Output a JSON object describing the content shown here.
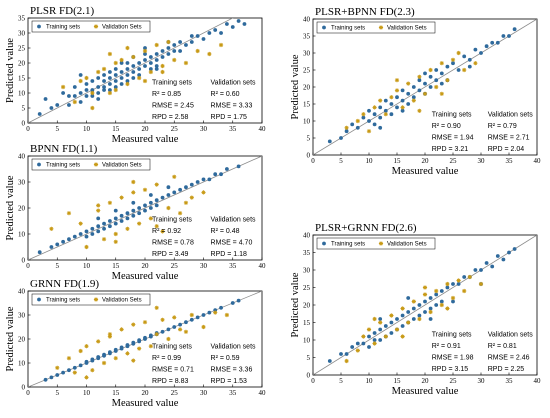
{
  "colors": {
    "training": "#2f6a9c",
    "validation": "#c89a16",
    "line": "#8c8c8c",
    "frame": "#000000"
  },
  "legend": {
    "training": "Training sets",
    "validation": "Validation Sets"
  },
  "chart_data": [
    {
      "id": "plsr",
      "type": "scatter",
      "title": "PLSR   FD(2.1)",
      "xlabel": "Measured value",
      "ylabel": "Predicted value",
      "xlim": [
        0,
        40
      ],
      "ylim": [
        0,
        35
      ],
      "xticks": [
        "0",
        "5",
        "10",
        "15",
        "20",
        "25",
        "30",
        "35",
        "40"
      ],
      "yticks": [
        "0",
        "5",
        "10",
        "15",
        "20",
        "25",
        "30",
        "35"
      ],
      "reference_line": "y = x",
      "legend_position": "top-left",
      "stats_headers": [
        "Training sets",
        "Validation sets"
      ],
      "stats": [
        {
          "label": "R² = ",
          "train": "0.85",
          "valid": "0.60"
        },
        {
          "label": "RMSE = ",
          "train": "2.45",
          "valid": "3.33"
        },
        {
          "label": "RPD = ",
          "train": "2.58",
          "valid": "1.75"
        }
      ],
      "series": [
        {
          "name": "Training sets",
          "x": [
            2,
            3,
            4,
            5,
            6,
            7,
            7,
            8,
            8,
            9,
            9,
            10,
            10,
            10,
            11,
            11,
            11,
            12,
            12,
            12,
            13,
            13,
            13,
            13,
            14,
            14,
            14,
            15,
            15,
            15,
            15,
            16,
            16,
            16,
            17,
            17,
            17,
            17,
            18,
            18,
            18,
            19,
            19,
            19,
            20,
            20,
            20,
            21,
            21,
            21,
            22,
            22,
            22,
            23,
            23,
            24,
            24,
            25,
            25,
            26,
            27,
            28,
            29,
            30,
            31,
            32,
            33,
            34,
            35,
            36,
            37,
            9,
            14,
            18,
            22,
            26,
            12,
            16,
            20,
            24,
            28
          ],
          "y": [
            3,
            8,
            5,
            6,
            10,
            6,
            9,
            9,
            12,
            10,
            7,
            13,
            9,
            11,
            11,
            14,
            9,
            12,
            15,
            10,
            14,
            12,
            16,
            11,
            15,
            13,
            17,
            16,
            14,
            12,
            18,
            17,
            15,
            13,
            18,
            16,
            14,
            20,
            19,
            17,
            15,
            20,
            18,
            16,
            21,
            19,
            23,
            22,
            20,
            18,
            23,
            21,
            19,
            24,
            22,
            25,
            23,
            26,
            24,
            27,
            26,
            27,
            29,
            28,
            30,
            31,
            30,
            33,
            32,
            34,
            33,
            16,
            11,
            22,
            18,
            24,
            8,
            20,
            25,
            27,
            29
          ]
        },
        {
          "name": "Validation Sets",
          "x": [
            6,
            8,
            9,
            10,
            11,
            12,
            13,
            14,
            15,
            15,
            16,
            17,
            18,
            19,
            20,
            21,
            22,
            23,
            24,
            25,
            27,
            29,
            31,
            33,
            11,
            14,
            17,
            20,
            23
          ],
          "y": [
            12,
            7,
            14,
            15,
            10,
            17,
            18,
            10,
            20,
            11,
            21,
            13,
            22,
            15,
            24,
            17,
            26,
            19,
            27,
            21,
            20,
            24,
            23,
            26,
            5,
            23,
            25,
            14,
            17
          ]
        }
      ]
    },
    {
      "id": "bpnn",
      "type": "scatter",
      "title": "BPNN   FD(1.1)",
      "xlabel": "Measured value",
      "ylabel": "Predicted value",
      "xlim": [
        0,
        40
      ],
      "ylim": [
        0,
        40
      ],
      "xticks": [
        "0",
        "5",
        "10",
        "15",
        "20",
        "25",
        "30",
        "35",
        "40"
      ],
      "yticks": [
        "0",
        "10",
        "20",
        "30",
        "40"
      ],
      "reference_line": "y = x",
      "legend_position": "top-left",
      "stats_headers": [
        "Training sets",
        "Validation sets"
      ],
      "stats": [
        {
          "label": "R² = ",
          "train": "0.92",
          "valid": "0.48"
        },
        {
          "label": "RMSE = ",
          "train": "0.78",
          "valid": "4.70"
        },
        {
          "label": "RPD = ",
          "train": "3.49",
          "valid": "1.18"
        }
      ],
      "series": [
        {
          "name": "Training sets",
          "x": [
            2,
            4,
            5,
            6,
            7,
            8,
            9,
            10,
            10,
            11,
            11,
            12,
            12,
            13,
            13,
            14,
            14,
            15,
            15,
            16,
            16,
            17,
            17,
            18,
            18,
            19,
            19,
            20,
            20,
            21,
            21,
            22,
            22,
            23,
            24,
            25,
            26,
            27,
            28,
            29,
            30,
            31,
            32,
            33,
            34,
            36,
            12,
            15,
            18,
            21,
            24
          ],
          "y": [
            3,
            5,
            6,
            7,
            8,
            9,
            10,
            11,
            9,
            12,
            10,
            13,
            11,
            14,
            12,
            15,
            13,
            16,
            14,
            17,
            15,
            18,
            16,
            19,
            17,
            20,
            18,
            21,
            19,
            22,
            20,
            23,
            21,
            24,
            25,
            26,
            27,
            28,
            29,
            30,
            31,
            31,
            33,
            33,
            35,
            36,
            16,
            19,
            22,
            25,
            28
          ]
        },
        {
          "name": "Validation Sets",
          "x": [
            4,
            7,
            9,
            10,
            12,
            13,
            14,
            15,
            16,
            17,
            18,
            19,
            20,
            21,
            22,
            23,
            24,
            25,
            27,
            28,
            30,
            12,
            15,
            18,
            22,
            26
          ],
          "y": [
            12,
            18,
            14,
            5,
            19,
            8,
            22,
            10,
            24,
            12,
            26,
            14,
            27,
            16,
            29,
            11,
            20,
            32,
            22,
            24,
            26,
            21,
            7,
            30,
            13,
            18
          ]
        }
      ]
    },
    {
      "id": "grnn",
      "type": "scatter",
      "title": "GRNN   FD(1.9)",
      "xlabel": "Measured value",
      "ylabel": "Predicted value",
      "xlim": [
        0,
        40
      ],
      "ylim": [
        0,
        40
      ],
      "xticks": [
        "0",
        "5",
        "10",
        "15",
        "20",
        "25",
        "30",
        "35",
        "40"
      ],
      "yticks": [
        "0",
        "10",
        "20",
        "30",
        "40"
      ],
      "reference_line": "y = x",
      "legend_position": "top-left",
      "stats_headers": [
        "Training sets",
        "Validation sets"
      ],
      "stats": [
        {
          "label": "R² = ",
          "train": "0.99",
          "valid": "0.59"
        },
        {
          "label": "RMSE = ",
          "train": "0.71",
          "valid": "3.36"
        },
        {
          "label": "RPD = ",
          "train": "8.83",
          "valid": "1.53"
        }
      ],
      "series": [
        {
          "name": "Training sets",
          "x": [
            3,
            4,
            5,
            6,
            7,
            8,
            9,
            10,
            10,
            11,
            11,
            12,
            12,
            13,
            13,
            14,
            14,
            15,
            15,
            16,
            16,
            17,
            17,
            18,
            18,
            19,
            19,
            20,
            20,
            21,
            21,
            22,
            22,
            23,
            24,
            25,
            26,
            27,
            28,
            29,
            30,
            31,
            32,
            33,
            35,
            36
          ],
          "y": [
            3,
            4,
            5,
            6,
            7,
            8,
            9,
            10,
            10.5,
            11,
            11.5,
            12,
            12.5,
            13,
            13.5,
            14,
            14.5,
            15,
            15.5,
            16,
            16.5,
            17,
            17.5,
            18,
            18.5,
            19,
            19.5,
            20,
            20.5,
            21,
            21.5,
            22,
            22.5,
            23,
            24,
            25,
            26,
            27,
            28,
            29,
            30,
            31,
            32,
            33,
            35,
            36
          ]
        },
        {
          "name": "Validation Sets",
          "x": [
            5,
            7,
            8,
            9,
            10,
            11,
            12,
            13,
            14,
            15,
            16,
            17,
            18,
            19,
            20,
            21,
            22,
            23,
            24,
            25,
            26,
            28,
            30,
            32,
            34,
            10,
            14,
            18,
            22,
            27
          ],
          "y": [
            8,
            12,
            6,
            15,
            17,
            7,
            19,
            10,
            22,
            12,
            24,
            14,
            26,
            16,
            27,
            17,
            22,
            28,
            20,
            29,
            24,
            30,
            25,
            31,
            30,
            4,
            21,
            11,
            33,
            23
          ]
        }
      ]
    },
    {
      "id": "plsr_bpnn",
      "type": "scatter",
      "title": "PLSR+BPNN   FD(2.3)",
      "xlabel": "Measured value",
      "ylabel": "Predicted value",
      "xlim": [
        0,
        40
      ],
      "ylim": [
        0,
        40
      ],
      "xticks": [
        "0",
        "5",
        "10",
        "15",
        "20",
        "25",
        "30",
        "35",
        "40"
      ],
      "yticks": [
        "0",
        "5",
        "10",
        "15",
        "20",
        "25",
        "30",
        "35",
        "40"
      ],
      "reference_line": "y = x",
      "legend_position": "top-left",
      "stats_headers": [
        "Training sets",
        "Validation sets"
      ],
      "stats": [
        {
          "label": "R² = ",
          "train": "0.90",
          "valid": "0.79"
        },
        {
          "label": "RMSE = ",
          "train": "1.94",
          "valid": "2.71"
        },
        {
          "label": "RPD = ",
          "train": "3.21",
          "valid": "2.04"
        }
      ],
      "series": [
        {
          "name": "Training sets",
          "x": [
            3,
            5,
            6,
            7,
            8,
            9,
            10,
            10,
            11,
            11,
            12,
            12,
            13,
            13,
            14,
            14,
            15,
            15,
            16,
            16,
            17,
            17,
            18,
            18,
            19,
            19,
            20,
            20,
            21,
            21,
            22,
            22,
            23,
            23,
            24,
            25,
            26,
            27,
            28,
            29,
            30,
            31,
            32,
            33,
            34,
            35,
            36,
            12,
            16,
            20,
            24,
            28
          ],
          "y": [
            4,
            5,
            7,
            9,
            8,
            11,
            10,
            13,
            12,
            9,
            14,
            11,
            13,
            16,
            15,
            12,
            17,
            14,
            16,
            19,
            18,
            15,
            20,
            17,
            19,
            22,
            21,
            18,
            23,
            20,
            22,
            25,
            24,
            21,
            26,
            27,
            25,
            29,
            28,
            31,
            30,
            32,
            33,
            33,
            35,
            35,
            37,
            8,
            13,
            24,
            22,
            26
          ]
        },
        {
          "name": "Validation Sets",
          "x": [
            6,
            8,
            9,
            11,
            12,
            13,
            14,
            15,
            16,
            17,
            18,
            19,
            20,
            21,
            22,
            23,
            24,
            25,
            27,
            29,
            10,
            15,
            19,
            23,
            26
          ],
          "y": [
            8,
            10,
            12,
            14,
            16,
            12,
            17,
            19,
            14,
            21,
            16,
            23,
            18,
            25,
            20,
            27,
            22,
            28,
            25,
            27,
            7,
            22,
            13,
            18,
            30
          ]
        }
      ]
    },
    {
      "id": "plsr_grnn",
      "type": "scatter",
      "title": "PLSR+GRNN   FD(2.6)",
      "xlabel": "Measured value",
      "ylabel": "Predicted value",
      "xlim": [
        0,
        40
      ],
      "ylim": [
        0,
        40
      ],
      "xticks": [
        "0",
        "5",
        "10",
        "15",
        "20",
        "25",
        "30",
        "35",
        "40"
      ],
      "yticks": [
        "0",
        "5",
        "10",
        "15",
        "20",
        "25",
        "30",
        "35",
        "40"
      ],
      "reference_line": "y = x",
      "legend_position": "top-left",
      "stats_headers": [
        "Training sets",
        "Validation sets"
      ],
      "stats": [
        {
          "label": "R² = ",
          "train": "0.91",
          "valid": "0.81"
        },
        {
          "label": "RMSE = ",
          "train": "1.98",
          "valid": "2.46"
        },
        {
          "label": "RPD = ",
          "train": "3.15",
          "valid": "2.25"
        }
      ],
      "series": [
        {
          "name": "Training sets",
          "x": [
            3,
            5,
            6,
            7,
            8,
            9,
            10,
            10,
            11,
            11,
            12,
            12,
            13,
            13,
            14,
            14,
            15,
            15,
            16,
            16,
            17,
            17,
            18,
            18,
            19,
            19,
            20,
            20,
            21,
            21,
            22,
            22,
            23,
            23,
            24,
            25,
            26,
            27,
            28,
            29,
            30,
            31,
            32,
            33,
            34,
            35,
            36,
            12,
            17,
            21,
            25,
            30
          ],
          "y": [
            4,
            6,
            6,
            8,
            9,
            9,
            11,
            8,
            12,
            10,
            13,
            10,
            14,
            11,
            15,
            12,
            16,
            13,
            17,
            14,
            18,
            15,
            19,
            16,
            20,
            17,
            21,
            18,
            22,
            19,
            23,
            20,
            24,
            21,
            25,
            26,
            26,
            28,
            28,
            30,
            30,
            32,
            31,
            34,
            33,
            35,
            36,
            16,
            22,
            16,
            21,
            26
          ]
        },
        {
          "name": "Validation Sets",
          "x": [
            6,
            8,
            9,
            10,
            11,
            12,
            13,
            14,
            15,
            16,
            17,
            18,
            19,
            20,
            21,
            22,
            23,
            24,
            25,
            26,
            27,
            28,
            30,
            11,
            16,
            20,
            24
          ],
          "y": [
            4,
            7,
            11,
            13,
            9,
            15,
            11,
            17,
            13,
            19,
            15,
            21,
            16,
            23,
            18,
            24,
            20,
            26,
            22,
            27,
            24,
            28,
            26,
            16,
            11,
            25,
            19
          ]
        }
      ]
    }
  ]
}
